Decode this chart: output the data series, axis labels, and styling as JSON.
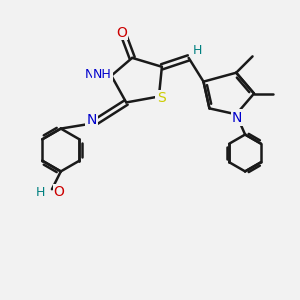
{
  "bg_color": "#f2f2f2",
  "bond_color": "#1a1a1a",
  "bond_lw": 1.8,
  "atom_colors": {
    "N": "#0000cc",
    "O": "#cc0000",
    "S": "#cccc00",
    "H": "#008080",
    "C": "#1a1a1a"
  },
  "fig_width": 3.0,
  "fig_height": 3.0
}
